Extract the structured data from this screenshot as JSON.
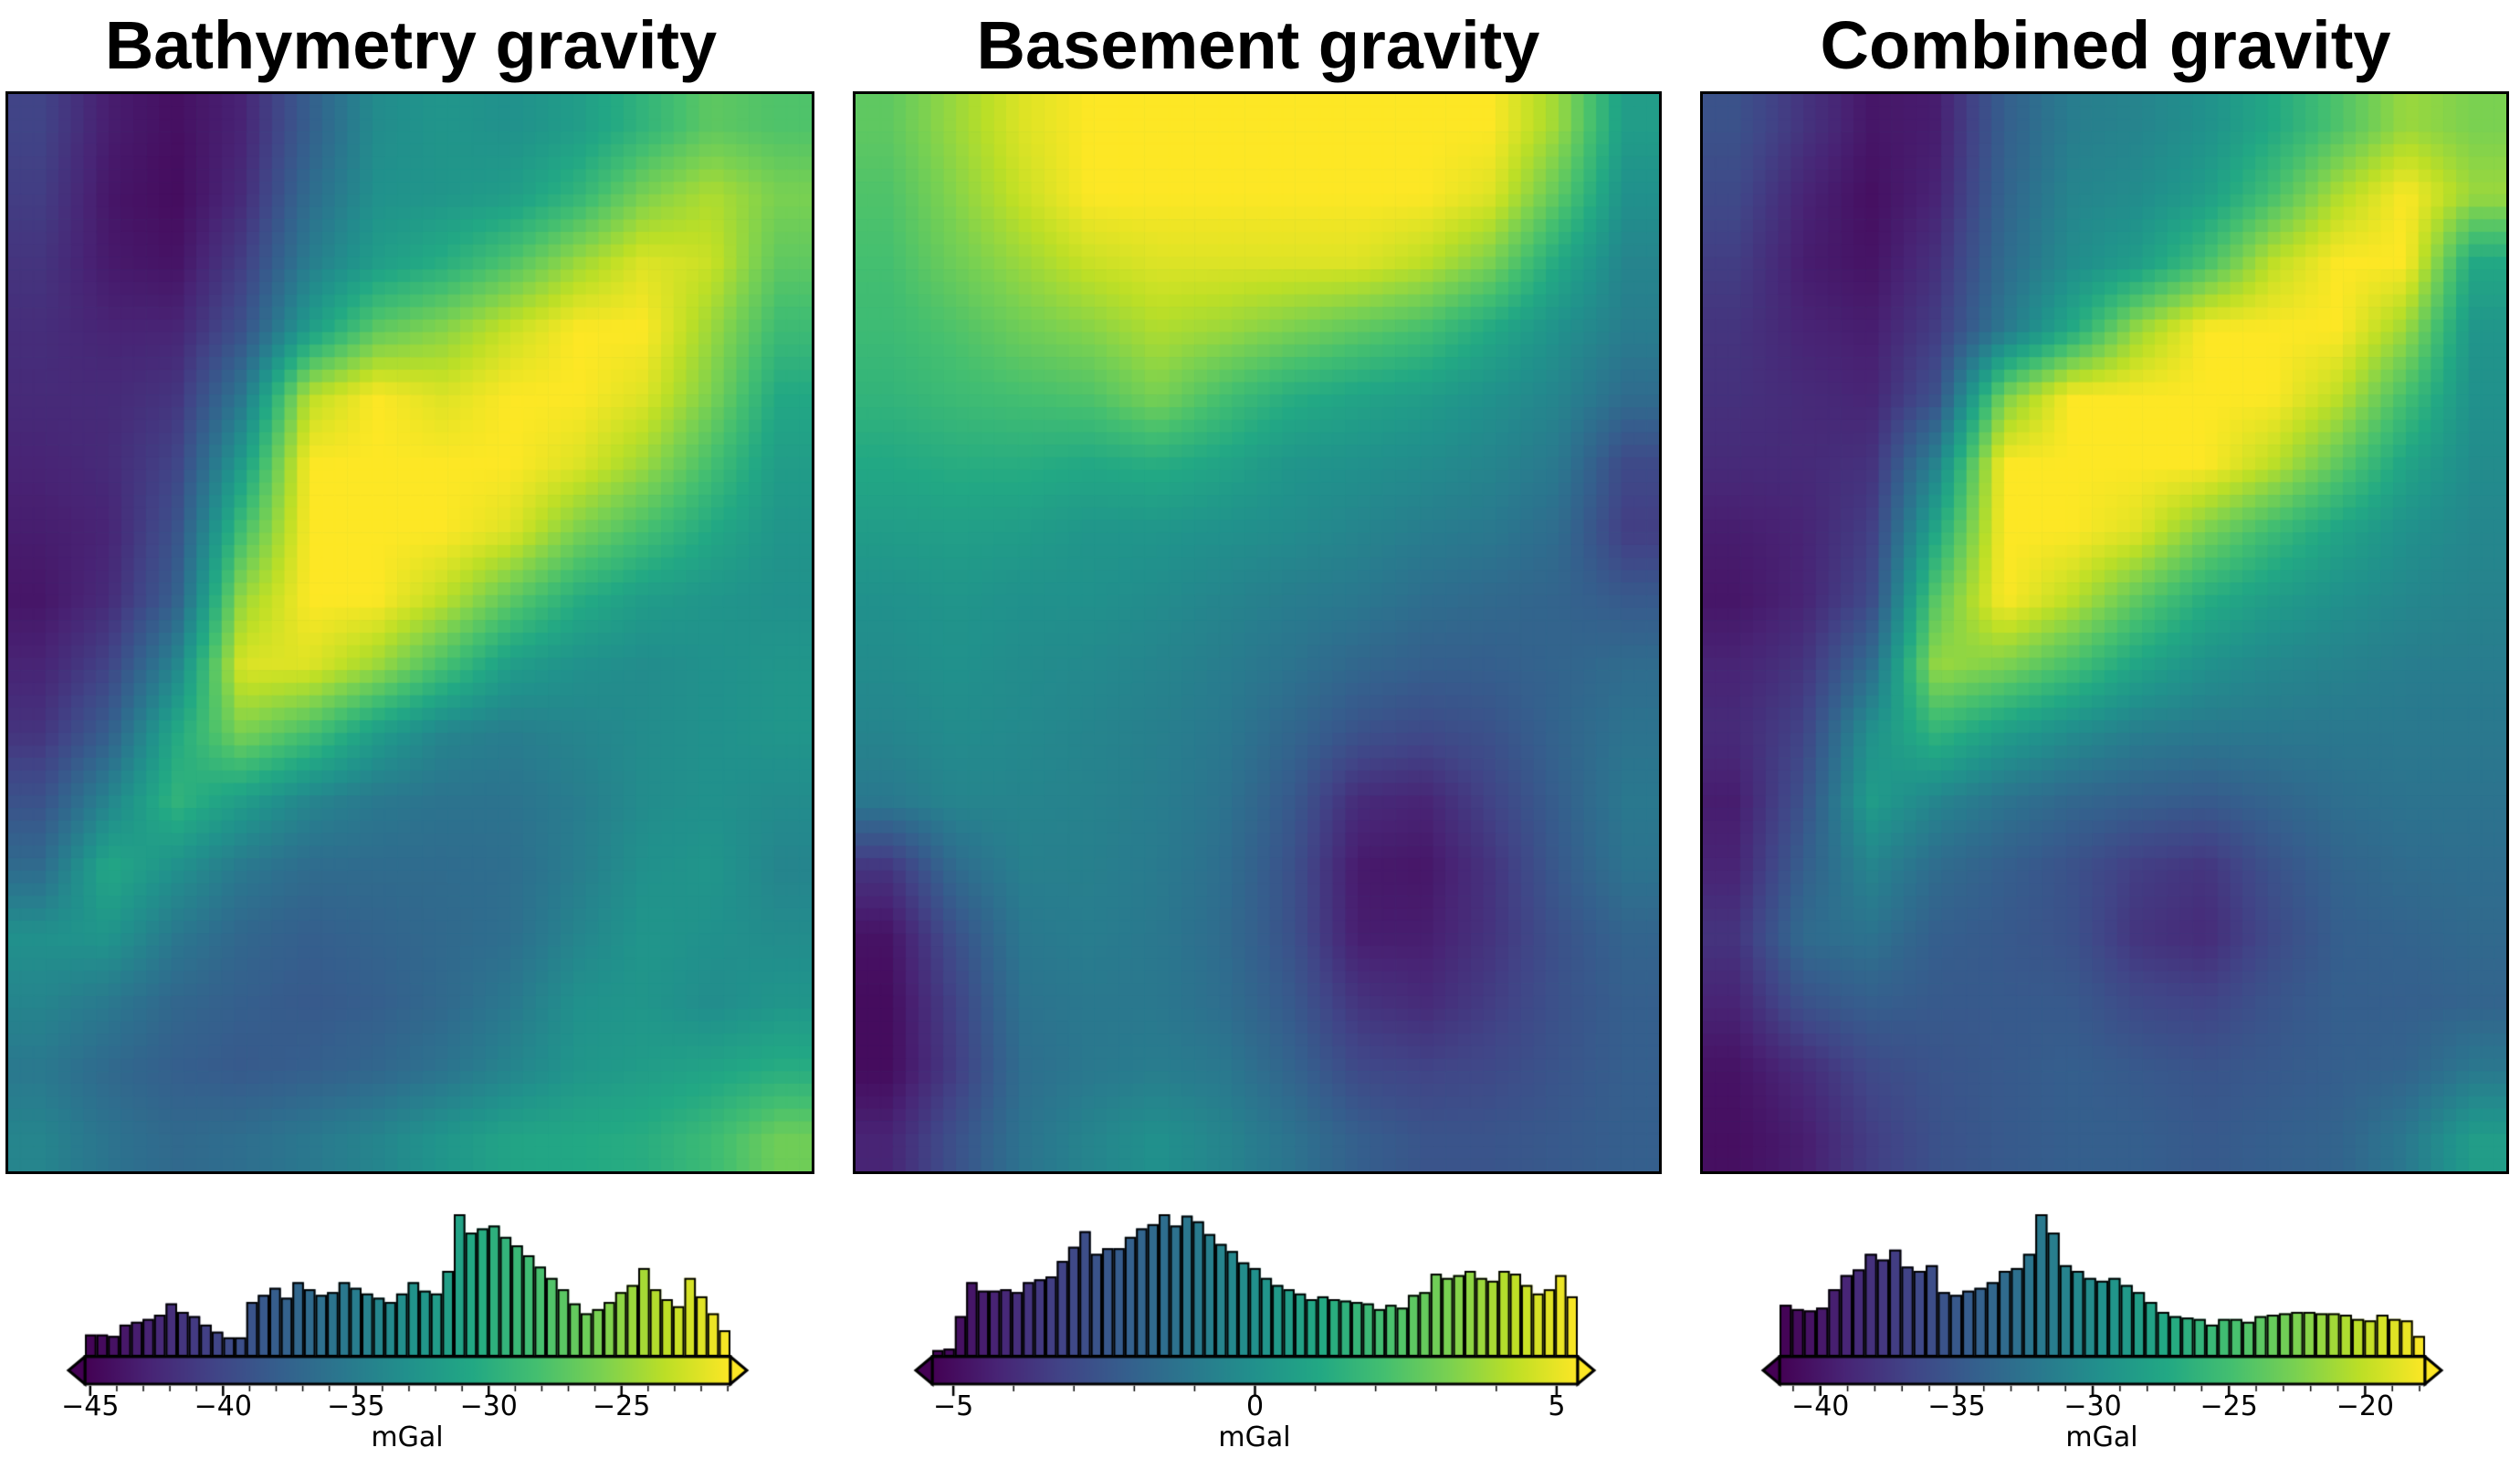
{
  "figure": {
    "background": "#ffffff",
    "units": "mGal"
  },
  "palette": {
    "colormap": "viridis",
    "viridis_stops": [
      "#440154",
      "#482475",
      "#414487",
      "#355f8d",
      "#2a788e",
      "#21918c",
      "#22a884",
      "#44bf70",
      "#7ad151",
      "#bddf26",
      "#fde725"
    ],
    "edge": "#000000",
    "text": "#000000"
  },
  "chart_data": [
    {
      "type": "heatmap",
      "title": "Bathymetry gravity",
      "colorbar": {
        "label": "mGal",
        "vmin": -45.2,
        "vmax": -20.9,
        "major_ticks": [
          -45,
          -40,
          -35,
          -30,
          -25
        ],
        "tick_labels": [
          "−45",
          "−40",
          "−35",
          "−30",
          "−25"
        ],
        "minor_tick_step": 1,
        "extend": "both"
      },
      "value_mapping": "mGal = vmin + t * (vmax - vmin)",
      "grid_norm": [
        [
          0.2,
          0.08,
          0.04,
          0.1,
          0.3,
          0.48,
          0.52,
          0.5,
          0.55,
          0.65,
          0.75,
          0.72
        ],
        [
          0.18,
          0.06,
          0.03,
          0.12,
          0.35,
          0.5,
          0.52,
          0.55,
          0.65,
          0.8,
          0.88,
          0.8
        ],
        [
          0.15,
          0.07,
          0.05,
          0.18,
          0.42,
          0.55,
          0.62,
          0.72,
          0.85,
          0.95,
          0.92,
          0.75
        ],
        [
          0.13,
          0.1,
          0.1,
          0.25,
          0.55,
          0.75,
          0.82,
          0.92,
          1.0,
          1.0,
          0.85,
          0.68
        ],
        [
          0.12,
          0.12,
          0.15,
          0.4,
          0.9,
          1.0,
          0.95,
          1.0,
          1.0,
          0.95,
          0.8,
          0.6
        ],
        [
          0.1,
          0.12,
          0.2,
          0.55,
          1.0,
          1.0,
          1.0,
          1.0,
          0.95,
          0.85,
          0.7,
          0.55
        ],
        [
          0.08,
          0.1,
          0.25,
          0.7,
          1.0,
          1.0,
          1.0,
          0.95,
          0.8,
          0.7,
          0.6,
          0.52
        ],
        [
          0.06,
          0.12,
          0.3,
          0.85,
          1.0,
          1.0,
          0.9,
          0.75,
          0.62,
          0.55,
          0.52,
          0.5
        ],
        [
          0.1,
          0.2,
          0.45,
          0.95,
          0.95,
          0.85,
          0.7,
          0.55,
          0.5,
          0.48,
          0.5,
          0.52
        ],
        [
          0.15,
          0.3,
          0.6,
          0.8,
          0.7,
          0.55,
          0.45,
          0.42,
          0.45,
          0.48,
          0.5,
          0.52
        ],
        [
          0.25,
          0.45,
          0.65,
          0.55,
          0.45,
          0.4,
          0.38,
          0.38,
          0.42,
          0.48,
          0.5,
          0.48
        ],
        [
          0.35,
          0.6,
          0.5,
          0.4,
          0.35,
          0.35,
          0.35,
          0.36,
          0.42,
          0.5,
          0.52,
          0.45
        ],
        [
          0.5,
          0.52,
          0.4,
          0.33,
          0.3,
          0.32,
          0.34,
          0.36,
          0.45,
          0.52,
          0.5,
          0.48
        ],
        [
          0.45,
          0.4,
          0.33,
          0.3,
          0.28,
          0.3,
          0.34,
          0.4,
          0.5,
          0.52,
          0.48,
          0.52
        ],
        [
          0.4,
          0.34,
          0.3,
          0.28,
          0.3,
          0.33,
          0.38,
          0.45,
          0.52,
          0.55,
          0.58,
          0.62
        ],
        [
          0.45,
          0.38,
          0.34,
          0.36,
          0.4,
          0.45,
          0.52,
          0.58,
          0.6,
          0.62,
          0.68,
          0.78
        ]
      ],
      "histogram": {
        "type": "bar",
        "heights_relative": [
          0.15,
          0.15,
          0.14,
          0.22,
          0.24,
          0.26,
          0.29,
          0.37,
          0.31,
          0.28,
          0.22,
          0.17,
          0.13,
          0.13,
          0.38,
          0.43,
          0.48,
          0.41,
          0.52,
          0.47,
          0.43,
          0.45,
          0.52,
          0.48,
          0.44,
          0.41,
          0.38,
          0.44,
          0.52,
          0.46,
          0.44,
          0.6,
          1.0,
          0.87,
          0.9,
          0.92,
          0.84,
          0.78,
          0.71,
          0.63,
          0.55,
          0.47,
          0.37,
          0.3,
          0.33,
          0.38,
          0.45,
          0.5,
          0.62,
          0.47,
          0.4,
          0.35,
          0.55,
          0.42,
          0.3,
          0.18
        ]
      }
    },
    {
      "type": "heatmap",
      "title": "Basement gravity",
      "colorbar": {
        "label": "mGal",
        "vmin": -5.35,
        "vmax": 5.35,
        "major_ticks": [
          -5,
          0,
          5
        ],
        "tick_labels": [
          "−5",
          "0",
          "5"
        ],
        "minor_tick_step": 1,
        "extend": "both"
      },
      "value_mapping": "mGal = vmin + t * (vmax - vmin)",
      "grid_norm": [
        [
          0.75,
          0.85,
          0.95,
          1.0,
          1.0,
          1.0,
          1.0,
          1.0,
          1.0,
          1.0,
          0.85,
          0.55
        ],
        [
          0.72,
          0.82,
          0.92,
          1.0,
          1.0,
          1.0,
          1.0,
          1.0,
          1.0,
          0.95,
          0.75,
          0.5
        ],
        [
          0.7,
          0.78,
          0.85,
          0.92,
          0.95,
          0.95,
          0.95,
          0.95,
          0.9,
          0.8,
          0.6,
          0.45
        ],
        [
          0.68,
          0.72,
          0.78,
          0.82,
          0.88,
          0.85,
          0.8,
          0.75,
          0.7,
          0.6,
          0.5,
          0.42
        ],
        [
          0.65,
          0.68,
          0.7,
          0.72,
          0.8,
          0.7,
          0.62,
          0.58,
          0.55,
          0.5,
          0.45,
          0.35
        ],
        [
          0.6,
          0.62,
          0.62,
          0.6,
          0.62,
          0.58,
          0.52,
          0.5,
          0.48,
          0.45,
          0.4,
          0.22
        ],
        [
          0.55,
          0.56,
          0.55,
          0.52,
          0.52,
          0.5,
          0.48,
          0.45,
          0.42,
          0.4,
          0.35,
          0.18
        ],
        [
          0.5,
          0.52,
          0.5,
          0.5,
          0.48,
          0.45,
          0.42,
          0.4,
          0.36,
          0.34,
          0.32,
          0.28
        ],
        [
          0.48,
          0.5,
          0.48,
          0.47,
          0.45,
          0.42,
          0.38,
          0.33,
          0.3,
          0.3,
          0.32,
          0.35
        ],
        [
          0.45,
          0.48,
          0.47,
          0.45,
          0.43,
          0.4,
          0.33,
          0.25,
          0.22,
          0.25,
          0.32,
          0.38
        ],
        [
          0.4,
          0.45,
          0.45,
          0.44,
          0.42,
          0.38,
          0.28,
          0.12,
          0.1,
          0.2,
          0.3,
          0.4
        ],
        [
          0.15,
          0.35,
          0.43,
          0.43,
          0.41,
          0.36,
          0.25,
          0.07,
          0.06,
          0.15,
          0.28,
          0.38
        ],
        [
          0.05,
          0.25,
          0.4,
          0.42,
          0.4,
          0.35,
          0.25,
          0.08,
          0.08,
          0.15,
          0.25,
          0.32
        ],
        [
          0.03,
          0.2,
          0.38,
          0.4,
          0.4,
          0.36,
          0.28,
          0.15,
          0.12,
          0.18,
          0.25,
          0.3
        ],
        [
          0.03,
          0.18,
          0.36,
          0.4,
          0.42,
          0.4,
          0.32,
          0.22,
          0.2,
          0.22,
          0.26,
          0.3
        ],
        [
          0.1,
          0.25,
          0.38,
          0.45,
          0.5,
          0.45,
          0.38,
          0.3,
          0.26,
          0.26,
          0.28,
          0.3
        ]
      ],
      "histogram": {
        "type": "bar",
        "heights_relative": [
          0.04,
          0.05,
          0.28,
          0.52,
          0.46,
          0.46,
          0.47,
          0.45,
          0.52,
          0.54,
          0.56,
          0.67,
          0.77,
          0.88,
          0.72,
          0.76,
          0.76,
          0.84,
          0.9,
          0.93,
          1.0,
          0.92,
          0.99,
          0.95,
          0.86,
          0.79,
          0.74,
          0.66,
          0.62,
          0.55,
          0.5,
          0.47,
          0.44,
          0.4,
          0.42,
          0.4,
          0.39,
          0.38,
          0.37,
          0.33,
          0.36,
          0.34,
          0.43,
          0.45,
          0.58,
          0.55,
          0.57,
          0.6,
          0.55,
          0.53,
          0.6,
          0.58,
          0.5,
          0.44,
          0.47,
          0.57,
          0.42
        ]
      }
    },
    {
      "type": "heatmap",
      "title": "Combined gravity",
      "colorbar": {
        "label": "mGal",
        "vmin": -41.5,
        "vmax": -17.8,
        "major_ticks": [
          -40,
          -35,
          -30,
          -25,
          -20
        ],
        "tick_labels": [
          "−40",
          "−35",
          "−30",
          "−25",
          "−20"
        ],
        "minor_tick_step": 1,
        "extend": "both"
      },
      "value_mapping": "mGal = vmin + t * (vmax - vmin)",
      "grid_norm": [
        [
          0.25,
          0.15,
          0.06,
          0.08,
          0.3,
          0.42,
          0.45,
          0.5,
          0.6,
          0.72,
          0.85,
          0.8
        ],
        [
          0.22,
          0.1,
          0.04,
          0.1,
          0.32,
          0.45,
          0.48,
          0.55,
          0.7,
          0.88,
          1.0,
          0.85
        ],
        [
          0.18,
          0.08,
          0.05,
          0.14,
          0.35,
          0.48,
          0.55,
          0.7,
          0.9,
          1.0,
          1.0,
          0.6
        ],
        [
          0.15,
          0.1,
          0.08,
          0.18,
          0.4,
          0.6,
          0.85,
          1.0,
          1.0,
          1.0,
          0.85,
          0.52
        ],
        [
          0.14,
          0.12,
          0.1,
          0.25,
          0.8,
          1.0,
          1.0,
          1.0,
          1.0,
          0.9,
          0.7,
          0.5
        ],
        [
          0.12,
          0.12,
          0.14,
          0.45,
          1.0,
          1.0,
          1.0,
          1.0,
          0.9,
          0.75,
          0.58,
          0.48
        ],
        [
          0.08,
          0.1,
          0.18,
          0.6,
          1.0,
          1.0,
          0.95,
          0.8,
          0.68,
          0.58,
          0.5,
          0.46
        ],
        [
          0.06,
          0.1,
          0.22,
          0.75,
          1.0,
          0.9,
          0.75,
          0.62,
          0.55,
          0.5,
          0.46,
          0.44
        ],
        [
          0.1,
          0.15,
          0.35,
          0.85,
          0.8,
          0.7,
          0.58,
          0.5,
          0.46,
          0.44,
          0.42,
          0.42
        ],
        [
          0.12,
          0.2,
          0.5,
          0.65,
          0.55,
          0.48,
          0.42,
          0.4,
          0.4,
          0.4,
          0.4,
          0.4
        ],
        [
          0.08,
          0.25,
          0.55,
          0.45,
          0.38,
          0.33,
          0.3,
          0.28,
          0.32,
          0.36,
          0.38,
          0.38
        ],
        [
          0.1,
          0.3,
          0.45,
          0.35,
          0.3,
          0.25,
          0.18,
          0.15,
          0.25,
          0.32,
          0.35,
          0.36
        ],
        [
          0.15,
          0.35,
          0.38,
          0.3,
          0.28,
          0.25,
          0.15,
          0.12,
          0.22,
          0.3,
          0.32,
          0.34
        ],
        [
          0.1,
          0.25,
          0.3,
          0.28,
          0.28,
          0.28,
          0.22,
          0.2,
          0.26,
          0.3,
          0.3,
          0.32
        ],
        [
          0.05,
          0.12,
          0.22,
          0.26,
          0.28,
          0.3,
          0.28,
          0.26,
          0.28,
          0.3,
          0.32,
          0.4
        ],
        [
          0.04,
          0.08,
          0.18,
          0.25,
          0.28,
          0.3,
          0.3,
          0.28,
          0.3,
          0.32,
          0.4,
          0.55
        ]
      ],
      "histogram": {
        "type": "bar",
        "heights_relative": [
          0.36,
          0.33,
          0.32,
          0.34,
          0.47,
          0.57,
          0.61,
          0.72,
          0.68,
          0.75,
          0.63,
          0.6,
          0.64,
          0.45,
          0.43,
          0.46,
          0.48,
          0.52,
          0.6,
          0.62,
          0.72,
          1.0,
          0.87,
          0.64,
          0.6,
          0.55,
          0.53,
          0.55,
          0.5,
          0.45,
          0.38,
          0.31,
          0.28,
          0.27,
          0.26,
          0.22,
          0.26,
          0.26,
          0.24,
          0.28,
          0.29,
          0.3,
          0.31,
          0.31,
          0.3,
          0.3,
          0.29,
          0.26,
          0.25,
          0.29,
          0.26,
          0.25,
          0.14
        ]
      }
    }
  ]
}
